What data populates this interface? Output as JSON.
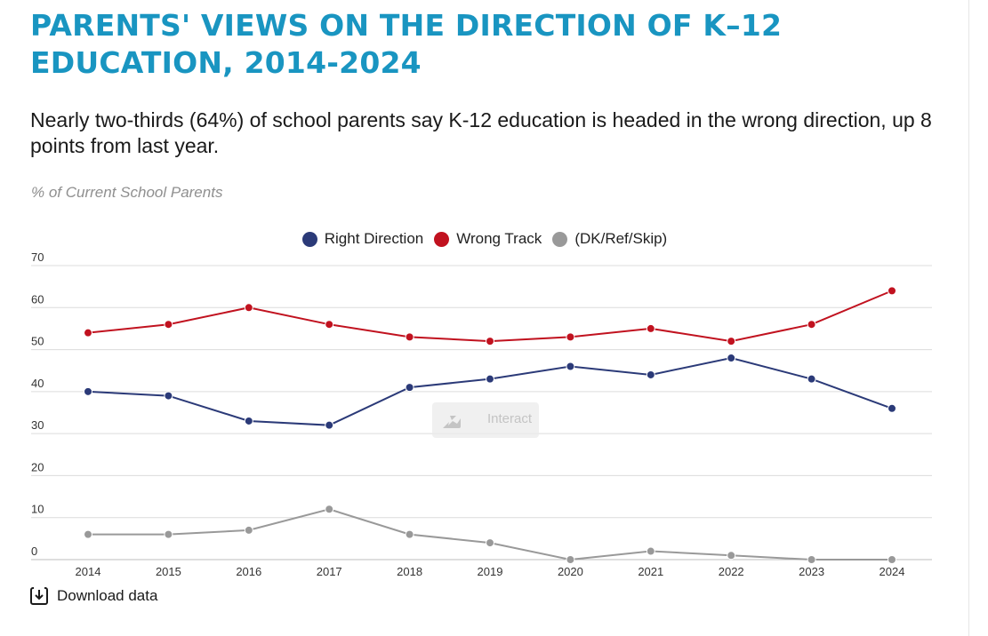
{
  "chart_data": {
    "type": "line",
    "title": "PARENTS' VIEWS ON THE DIRECTION OF K–12 EDUCATION, 2014-2024",
    "subtitle": "Nearly two-thirds (64%) of school parents say K-12 education is headed in the wrong direction, up 8 points from last year.",
    "ylabel": "% of Current School Parents",
    "xlabel": "",
    "x": [
      "2014",
      "2015",
      "2016",
      "2017",
      "2018",
      "2019",
      "2020",
      "2021",
      "2022",
      "2023",
      "2024"
    ],
    "yticks": [
      "0",
      "10",
      "20",
      "30",
      "40",
      "50",
      "60",
      "70"
    ],
    "ylim": [
      0,
      70
    ],
    "grid": true,
    "legend_position": "top-center",
    "series": [
      {
        "name": "Right Direction",
        "color": "#2b3a78",
        "values": [
          40,
          39,
          33,
          32,
          41,
          43,
          46,
          44,
          48,
          43,
          36
        ]
      },
      {
        "name": "Wrong Track",
        "color": "#c1121f",
        "values": [
          54,
          56,
          60,
          56,
          53,
          52,
          53,
          55,
          52,
          56,
          64
        ]
      },
      {
        "name": "(DK/Ref/Skip)",
        "color": "#999999",
        "values": [
          6,
          6,
          7,
          12,
          6,
          4,
          0,
          2,
          1,
          0,
          0
        ]
      }
    ]
  },
  "controls": {
    "interact_label": "Interact",
    "download_label": "Download data"
  }
}
